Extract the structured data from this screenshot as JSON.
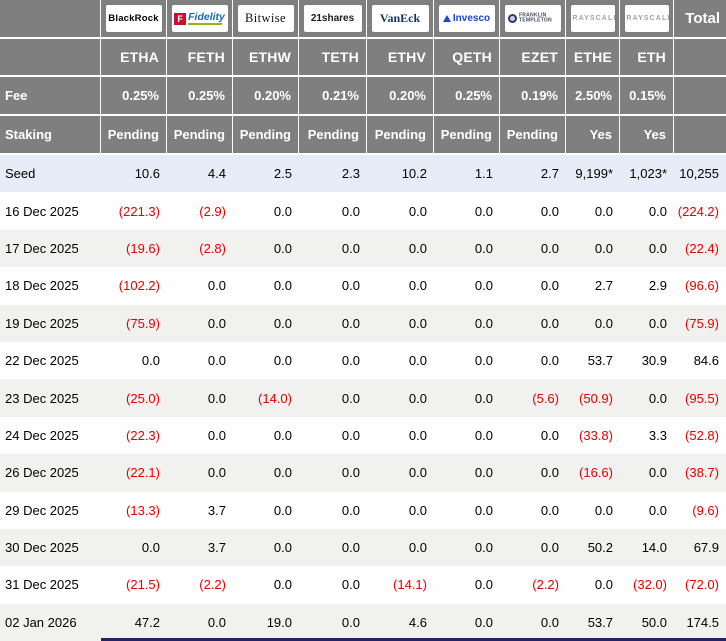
{
  "table": {
    "providers": [
      {
        "name": "BlackRock",
        "logo": "blackrock"
      },
      {
        "name": "Fidelity",
        "logo": "fidelity"
      },
      {
        "name": "Bitwise",
        "logo": "bitwise"
      },
      {
        "name": "21shares",
        "logo": "21shares"
      },
      {
        "name": "VanEck",
        "logo": "vaneck"
      },
      {
        "name": "Invesco",
        "logo": "invesco"
      },
      {
        "name": "Franklin Templeton",
        "logo": "franklin"
      },
      {
        "name": "Grayscale",
        "logo": "grayscale"
      },
      {
        "name": "Grayscale",
        "logo": "grayscale"
      }
    ],
    "total_label": "Total",
    "tickers": [
      "ETHA",
      "FETH",
      "ETHW",
      "TETH",
      "ETHV",
      "QETH",
      "EZET",
      "ETHE",
      "ETH"
    ],
    "fee_label": "Fee",
    "fees": [
      "0.25%",
      "0.25%",
      "0.20%",
      "0.21%",
      "0.20%",
      "0.25%",
      "0.19%",
      "2.50%",
      "0.15%"
    ],
    "staking_label": "Staking",
    "staking": [
      "Pending",
      "Pending",
      "Pending",
      "Pending",
      "Pending",
      "Pending",
      "Pending",
      "Yes",
      "Yes"
    ],
    "rows": [
      {
        "label": "Seed",
        "type": "seed",
        "values": [
          "10.6",
          "4.4",
          "2.5",
          "2.3",
          "10.2",
          "1.1",
          "2.7",
          "9,199*",
          "1,023*",
          "10,255"
        ]
      },
      {
        "label": "16 Dec 2025",
        "values": [
          "(221.3)",
          "(2.9)",
          "0.0",
          "0.0",
          "0.0",
          "0.0",
          "0.0",
          "0.0",
          "0.0",
          "(224.2)"
        ]
      },
      {
        "label": "17 Dec 2025",
        "values": [
          "(19.6)",
          "(2.8)",
          "0.0",
          "0.0",
          "0.0",
          "0.0",
          "0.0",
          "0.0",
          "0.0",
          "(22.4)"
        ]
      },
      {
        "label": "18 Dec 2025",
        "values": [
          "(102.2)",
          "0.0",
          "0.0",
          "0.0",
          "0.0",
          "0.0",
          "0.0",
          "2.7",
          "2.9",
          "(96.6)"
        ]
      },
      {
        "label": "19 Dec 2025",
        "values": [
          "(75.9)",
          "0.0",
          "0.0",
          "0.0",
          "0.0",
          "0.0",
          "0.0",
          "0.0",
          "0.0",
          "(75.9)"
        ]
      },
      {
        "label": "22 Dec 2025",
        "values": [
          "0.0",
          "0.0",
          "0.0",
          "0.0",
          "0.0",
          "0.0",
          "0.0",
          "53.7",
          "30.9",
          "84.6"
        ]
      },
      {
        "label": "23 Dec 2025",
        "values": [
          "(25.0)",
          "0.0",
          "(14.0)",
          "0.0",
          "0.0",
          "0.0",
          "(5.6)",
          "(50.9)",
          "0.0",
          "(95.5)"
        ]
      },
      {
        "label": "24 Dec 2025",
        "values": [
          "(22.3)",
          "0.0",
          "0.0",
          "0.0",
          "0.0",
          "0.0",
          "0.0",
          "(33.8)",
          "3.3",
          "(52.8)"
        ]
      },
      {
        "label": "26 Dec 2025",
        "values": [
          "(22.1)",
          "0.0",
          "0.0",
          "0.0",
          "0.0",
          "0.0",
          "0.0",
          "(16.6)",
          "0.0",
          "(38.7)"
        ]
      },
      {
        "label": "29 Dec 2025",
        "values": [
          "(13.3)",
          "3.7",
          "0.0",
          "0.0",
          "0.0",
          "0.0",
          "0.0",
          "0.0",
          "0.0",
          "(9.6)"
        ]
      },
      {
        "label": "30 Dec 2025",
        "values": [
          "0.0",
          "3.7",
          "0.0",
          "0.0",
          "0.0",
          "0.0",
          "0.0",
          "50.2",
          "14.0",
          "67.9"
        ]
      },
      {
        "label": "31 Dec 2025",
        "values": [
          "(21.5)",
          "(2.2)",
          "0.0",
          "0.0",
          "(14.1)",
          "0.0",
          "(2.2)",
          "0.0",
          "(32.0)",
          "(72.0)"
        ]
      },
      {
        "label": "02 Jan 2026",
        "values": [
          "47.2",
          "0.0",
          "19.0",
          "0.0",
          "4.6",
          "0.0",
          "0.0",
          "53.7",
          "50.0",
          "174.5"
        ]
      }
    ],
    "colors": {
      "header_bg": "#7f7f7f",
      "seed_row_bg": "#e7edf8",
      "alt_row_bg": "#f1f1ef",
      "negative": "#e60000",
      "footer_bar": "#232168"
    }
  }
}
